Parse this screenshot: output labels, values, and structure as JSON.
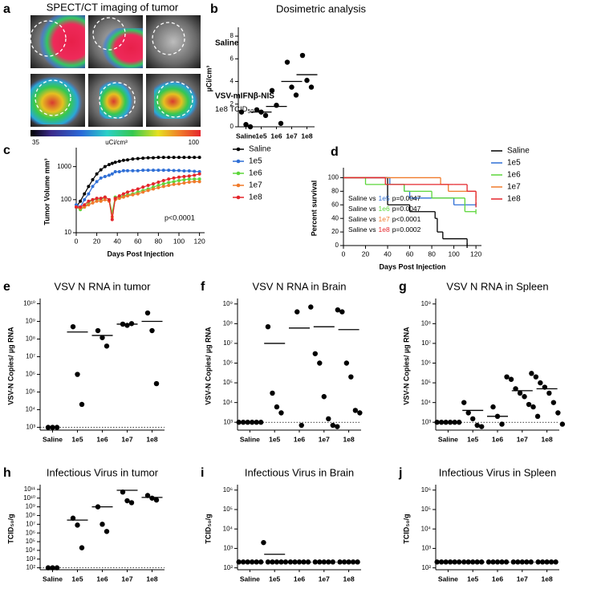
{
  "imaging": {
    "label": "a",
    "title": "SPECT/CT imaging of tumor",
    "rows": [
      "Saline",
      "VSV-mIFNβ-NIS"
    ],
    "dose": "1e8 TCID",
    "dose_subscript": "50",
    "colorbar": {
      "min": "35",
      "unit": "uCi/cm³",
      "max": "100"
    }
  },
  "chart_data": [
    {
      "label": "b",
      "type": "dot",
      "title": "Dosimetric analysis",
      "ylabel": "µCi/cm³",
      "log": false,
      "categories": [
        "Saline",
        "1e5",
        "1e6",
        "1e7",
        "1e8"
      ],
      "points": [
        [
          1.3,
          0.2,
          0
        ],
        [
          1.5,
          1.3,
          1.0
        ],
        [
          3.2,
          1.9,
          0.3
        ],
        [
          5.7,
          3.5,
          2.8
        ],
        [
          6.3,
          4.1,
          3.5
        ]
      ],
      "means": [
        null,
        1.3,
        1.8,
        4.0,
        4.6
      ],
      "ylim": [
        0,
        8.5
      ],
      "yticks": [
        0,
        2,
        4,
        6,
        8
      ]
    },
    {
      "label": "c",
      "type": "line",
      "ylabel": "Tumor Volume mm³",
      "xlabel": "Days Post Injection",
      "log": true,
      "annotation": "p<0.0001",
      "x": [
        0,
        4,
        8,
        12,
        16,
        20,
        24,
        28,
        32,
        35,
        38,
        42,
        46,
        50,
        55,
        60,
        65,
        70,
        75,
        80,
        85,
        90,
        95,
        100,
        105,
        110,
        115,
        120
      ],
      "series": [
        {
          "name": "Saline",
          "color": "#000000",
          "values": [
            60,
            90,
            150,
            250,
            400,
            600,
            800,
            1000,
            1150,
            1250,
            1350,
            1450,
            1550,
            1600,
            1700,
            1750,
            1800,
            1850,
            1850,
            1900,
            1900,
            1900,
            1900,
            1900,
            1900,
            1900,
            1900,
            1900
          ]
        },
        {
          "name": "1e5",
          "color": "#2f6fd6",
          "values": [
            70,
            60,
            100,
            150,
            250,
            350,
            450,
            500,
            550,
            600,
            700,
            700,
            750,
            750,
            750,
            750,
            780,
            780,
            780,
            780,
            780,
            780,
            760,
            760,
            740,
            740,
            720,
            700
          ]
        },
        {
          "name": "1e6",
          "color": "#5cd63a",
          "values": [
            60,
            50,
            60,
            80,
            100,
            100,
            100,
            120,
            100,
            40,
            120,
            120,
            130,
            140,
            150,
            170,
            190,
            210,
            240,
            270,
            300,
            330,
            350,
            380,
            400,
            420,
            420,
            420
          ]
        },
        {
          "name": "1e7",
          "color": "#f07a2a",
          "values": [
            60,
            55,
            60,
            70,
            80,
            90,
            90,
            100,
            90,
            30,
            100,
            110,
            120,
            130,
            140,
            150,
            170,
            190,
            210,
            230,
            250,
            270,
            290,
            300,
            320,
            340,
            350,
            350
          ]
        },
        {
          "name": "1e8",
          "color": "#e4262c",
          "values": [
            60,
            60,
            70,
            90,
            100,
            110,
            110,
            120,
            100,
            25,
            110,
            130,
            150,
            170,
            190,
            210,
            240,
            270,
            300,
            340,
            380,
            420,
            450,
            480,
            500,
            520,
            550,
            600
          ]
        }
      ],
      "xlim": [
        0,
        125
      ],
      "xticks": [
        0,
        20,
        40,
        60,
        80,
        100,
        120
      ],
      "ylim": [
        10,
        3000
      ],
      "yticks": [
        10,
        100,
        1000
      ]
    },
    {
      "label": "d",
      "type": "step",
      "ylabel": "Percent survival",
      "xlabel": "Days Post Injection",
      "log": false,
      "series": [
        {
          "name": "Saline",
          "color": "#000000",
          "x": [
            0,
            40,
            60,
            83,
            85,
            90,
            112
          ],
          "values": [
            100,
            60,
            50,
            40,
            20,
            10,
            0
          ]
        },
        {
          "name": "1e5",
          "color": "#2f6fd6",
          "x": [
            0,
            42,
            55,
            60,
            100,
            120
          ],
          "values": [
            100,
            90,
            80,
            70,
            60,
            60
          ]
        },
        {
          "name": "1e6",
          "color": "#5cd63a",
          "x": [
            0,
            20,
            55,
            80,
            110,
            120
          ],
          "values": [
            100,
            90,
            80,
            70,
            50,
            50
          ]
        },
        {
          "name": "1e7",
          "color": "#f07a2a",
          "x": [
            0,
            88,
            95,
            120
          ],
          "values": [
            100,
            90,
            80,
            70
          ]
        },
        {
          "name": "1e8",
          "color": "#e4262c",
          "x": [
            0,
            38,
            100,
            112,
            120
          ],
          "values": [
            100,
            90,
            90,
            80,
            60
          ]
        }
      ],
      "stats": [
        {
          "prefix": "Saline vs",
          "group": "1e5",
          "p": "p=0.0047"
        },
        {
          "prefix": "Saline vs",
          "group": "1e6",
          "p": "p=0.0047"
        },
        {
          "prefix": "Saline vs",
          "group": "1e7",
          "p": "p<0.0001"
        },
        {
          "prefix": "Saline vs",
          "group": "1e8",
          "p": "p=0.0002"
        }
      ],
      "xlim": [
        0,
        125
      ],
      "xticks": [
        0,
        20,
        40,
        60,
        80,
        100,
        120
      ],
      "ylim": [
        0,
        110
      ],
      "yticks": [
        0,
        20,
        40,
        60,
        80,
        100
      ]
    },
    {
      "label": "e",
      "type": "dot",
      "title": "VSV N RNA in tumor",
      "ylabel": "VSV-N Copies/ µg RNA",
      "log": true,
      "detection_limit": 1000,
      "categories": [
        "Saline",
        "1e5",
        "1e6",
        "1e7",
        "1e8"
      ],
      "points": [
        [
          1000,
          1000,
          1000
        ],
        [
          500000000.0,
          1000000.0,
          20000.0
        ],
        [
          300000000.0,
          120000000.0,
          40000000.0
        ],
        [
          700000000.0,
          600000000.0,
          750000000.0
        ],
        [
          3000000000.0,
          300000000.0,
          300000.0
        ]
      ],
      "means": [
        null,
        250000000.0,
        160000000.0,
        700000000.0,
        1000000000.0
      ],
      "ylim": [
        700,
        13000000000.0
      ],
      "yticks": [
        {
          "value": 1000,
          "label": "10³"
        },
        {
          "value": 10000,
          "label": "10⁴"
        },
        {
          "value": 100000,
          "label": "10⁵"
        },
        {
          "value": 1000000,
          "label": "10⁶"
        },
        {
          "value": 10000000,
          "label": "10⁷"
        },
        {
          "value": 100000000,
          "label": "10⁸"
        },
        {
          "value": 1000000000,
          "label": "10⁹"
        },
        {
          "value": 10000000000,
          "label": "10¹⁰"
        }
      ]
    },
    {
      "label": "f",
      "type": "dot",
      "title": "VSV N RNA in Brain",
      "ylabel": "VSV-N Copies/ µg RNA",
      "log": true,
      "detection_limit": 1000,
      "categories": [
        "Saline",
        "1e5",
        "1e6",
        "1e7",
        "1e8"
      ],
      "points": [
        [
          1000,
          1000,
          1000,
          1000,
          1000,
          1000
        ],
        [
          70000000.0,
          30000.0,
          6000.0,
          3000.0
        ],
        [
          400000000.0,
          700
        ],
        [
          700000000.0,
          3000000.0,
          1000000.0,
          20000.0,
          1500,
          700,
          600
        ],
        [
          500000000.0,
          400000000.0,
          1000000.0,
          200000.0,
          4000.0,
          3000.0
        ]
      ],
      "means": [
        null,
        10000000.0,
        60000000.0,
        70000000.0,
        50000000.0
      ],
      "ylim": [
        400,
        1300000000.0
      ],
      "yticks": [
        {
          "value": 1000,
          "label": "10³"
        },
        {
          "value": 10000,
          "label": "10⁴"
        },
        {
          "value": 100000,
          "label": "10⁵"
        },
        {
          "value": 1000000,
          "label": "10⁶"
        },
        {
          "value": 10000000,
          "label": "10⁷"
        },
        {
          "value": 100000000,
          "label": "10⁸"
        },
        {
          "value": 1000000000,
          "label": "10⁹"
        }
      ]
    },
    {
      "label": "g",
      "type": "dot",
      "title": "VSV N RNA in Spleen",
      "ylabel": "VSV-N Copies/ µg RNA",
      "log": true,
      "detection_limit": 1000,
      "categories": [
        "Saline",
        "1e5",
        "1e6",
        "1e7",
        "1e8"
      ],
      "points": [
        [
          1000,
          1000,
          1000,
          1000,
          1000,
          1000
        ],
        [
          10000.0,
          3000.0,
          1500.0,
          700,
          600
        ],
        [
          6000.0,
          2000.0,
          800
        ],
        [
          200000.0,
          150000.0,
          50000.0,
          30000.0,
          20000.0,
          8000.0,
          6000.0,
          2000.0
        ],
        [
          300000.0,
          200000.0,
          100000.0,
          60000.0,
          30000.0,
          10000.0,
          3000.0,
          800
        ]
      ],
      "means": [
        null,
        4000.0,
        2000.0,
        40000.0,
        50000.0
      ],
      "ylim": [
        400,
        1300000000.0
      ],
      "yticks": [
        {
          "value": 1000,
          "label": "10³"
        },
        {
          "value": 10000,
          "label": "10⁴"
        },
        {
          "value": 100000,
          "label": "10⁵"
        },
        {
          "value": 1000000,
          "label": "10⁶"
        },
        {
          "value": 10000000,
          "label": "10⁷"
        },
        {
          "value": 100000000,
          "label": "10⁸"
        },
        {
          "value": 1000000000,
          "label": "10⁹"
        }
      ]
    },
    {
      "label": "h",
      "type": "dot",
      "title": "Infectious Virus in tumor",
      "ylabel": "TCID₅₀/g",
      "log": true,
      "detection_limit": 100,
      "categories": [
        "Saline",
        "1e5",
        "1e6",
        "1e7",
        "1e8"
      ],
      "points": [
        [
          100,
          100,
          100
        ],
        [
          50000000.0,
          8000000.0,
          20000.0
        ],
        [
          1000000000.0,
          10000000.0,
          1500000.0
        ],
        [
          50000000000.0,
          5000000000.0,
          3000000000.0
        ],
        [
          20000000000.0,
          10000000000.0,
          6000000000.0
        ]
      ],
      "means": [
        null,
        30000000.0,
        1000000000.0,
        80000000000.0,
        12000000000.0
      ],
      "ylim": [
        60,
        150000000000.0
      ],
      "yticks": [
        {
          "value": 100,
          "label": "10²"
        },
        {
          "value": 1000,
          "label": "10³"
        },
        {
          "value": 10000,
          "label": "10⁴"
        },
        {
          "value": 100000,
          "label": "10⁵"
        },
        {
          "value": 1000000,
          "label": "10⁶"
        },
        {
          "value": 10000000,
          "label": "10⁷"
        },
        {
          "value": 100000000,
          "label": "10⁸"
        },
        {
          "value": 1000000000,
          "label": "10⁹"
        },
        {
          "value": 10000000000,
          "label": "10¹⁰"
        },
        {
          "value": 100000000000,
          "label": "10¹¹"
        }
      ]
    },
    {
      "label": "i",
      "type": "dot",
      "title": "Infectious Virus in Brain",
      "ylabel": "TCID₅₀/g",
      "log": true,
      "detection_limit": 200,
      "categories": [
        "Saline",
        "1e5",
        "1e6",
        "1e7",
        "1e8"
      ],
      "points": [
        [
          200,
          200,
          200,
          200,
          200,
          200
        ],
        [
          2000,
          200,
          200,
          200,
          200,
          200
        ],
        [
          200,
          200,
          200,
          200,
          200
        ],
        [
          200,
          200,
          200,
          200,
          200
        ],
        [
          200,
          200,
          200,
          200,
          200
        ]
      ],
      "means": [
        null,
        500,
        null,
        null,
        null
      ],
      "ylim": [
        80,
        1300000.0
      ],
      "yticks": [
        {
          "value": 100,
          "label": "10²"
        },
        {
          "value": 1000,
          "label": "10³"
        },
        {
          "value": 10000,
          "label": "10⁴"
        },
        {
          "value": 100000,
          "label": "10⁵"
        },
        {
          "value": 1000000,
          "label": "10⁶"
        }
      ]
    },
    {
      "label": "j",
      "type": "dot",
      "title": "Infectious Virus in Spleen",
      "ylabel": "TCID₅₀/g",
      "log": true,
      "detection_limit": 200,
      "categories": [
        "Saline",
        "1e5",
        "1e6",
        "1e7",
        "1e8"
      ],
      "points": [
        [
          200,
          200,
          200,
          200,
          200,
          200
        ],
        [
          200,
          200,
          200,
          200,
          200
        ],
        [
          200,
          200,
          200,
          200,
          200
        ],
        [
          200,
          200,
          200,
          200,
          200
        ],
        [
          200,
          200,
          200,
          200,
          200
        ]
      ],
      "means": [
        null,
        null,
        null,
        null,
        null
      ],
      "ylim": [
        80,
        1300000.0
      ],
      "yticks": [
        {
          "value": 100,
          "label": "10²"
        },
        {
          "value": 1000,
          "label": "10³"
        },
        {
          "value": 10000,
          "label": "10⁴"
        },
        {
          "value": 100000,
          "label": "10⁵"
        },
        {
          "value": 1000000,
          "label": "10⁶"
        }
      ]
    }
  ]
}
